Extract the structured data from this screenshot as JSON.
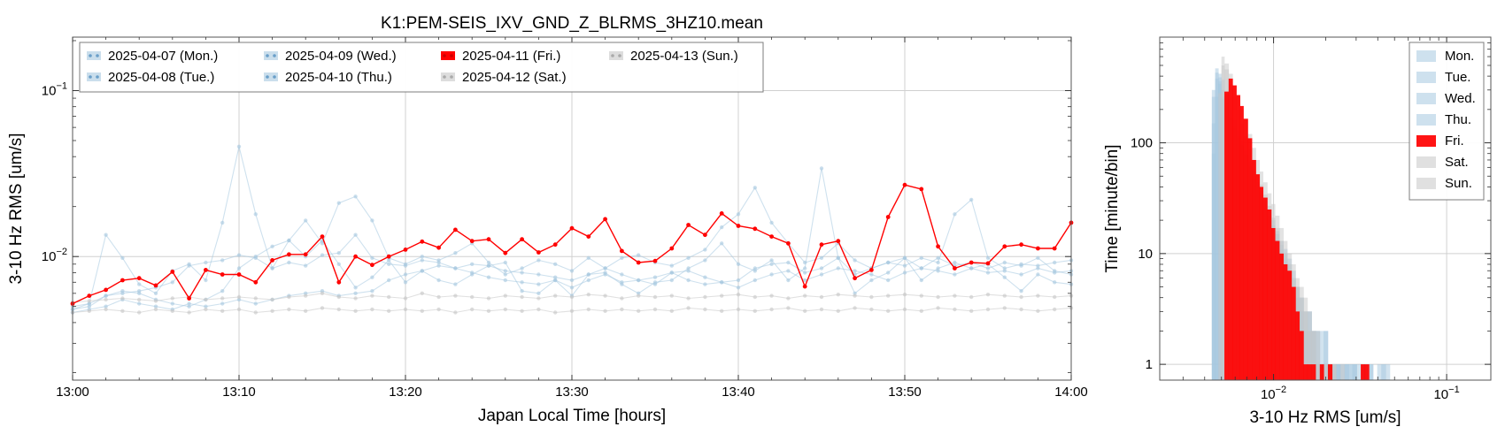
{
  "chart_data": [
    {
      "type": "line",
      "title": "K1:PEM-SEIS_IXV_GND_Z_BLRMS_3HZ10.mean",
      "xlabel": "Japan Local Time [hours]",
      "ylabel": "3-10 Hz RMS [um/s]",
      "xlim": [
        0,
        60
      ],
      "ylim": [
        0.0018,
        0.21
      ],
      "yscale": "log",
      "grid": true,
      "legend_placement": "top-left",
      "x_ticks": [
        {
          "value": 0,
          "label": "13:00"
        },
        {
          "value": 10,
          "label": "13:10"
        },
        {
          "value": 20,
          "label": "13:20"
        },
        {
          "value": 30,
          "label": "13:30"
        },
        {
          "value": 40,
          "label": "13:40"
        },
        {
          "value": 50,
          "label": "13:50"
        },
        {
          "value": 60,
          "label": "14:00"
        }
      ],
      "y_ticks": [
        {
          "value": 0.01,
          "base": "10",
          "exp": "−2"
        },
        {
          "value": 0.1,
          "base": "10",
          "exp": "−1"
        }
      ],
      "series": [
        {
          "name": "2025-04-07 (Mon.)",
          "color": "#a6c8e0",
          "highlight": false,
          "values": [
            0.0048,
            0.0052,
            0.0135,
            0.0098,
            0.0068,
            0.006,
            0.0082,
            0.009,
            0.0072,
            0.016,
            0.046,
            0.018,
            0.0085,
            0.0125,
            0.01,
            0.0125,
            0.009,
            0.0065,
            0.0075,
            0.0095,
            0.007,
            0.0082,
            0.0072,
            0.0068,
            0.0078,
            0.0088,
            0.0092,
            0.0062,
            0.006,
            0.0072,
            0.0058,
            0.0078,
            0.008,
            0.0068,
            0.006,
            0.007,
            0.0072,
            0.0085,
            0.0095,
            0.012,
            0.009,
            0.0082,
            0.0095,
            0.0072,
            0.0085,
            0.034,
            0.0098,
            0.006,
            0.0072,
            0.008,
            0.0098,
            0.0072,
            0.0085,
            0.0092,
            0.0085,
            0.009,
            0.0075,
            0.0062,
            0.0078,
            0.007,
            0.0068
          ]
        },
        {
          "name": "2025-04-08 (Tue.)",
          "color": "#a6c8e0",
          "highlight": false,
          "values": [
            0.005,
            0.0052,
            0.0058,
            0.006,
            0.0062,
            0.0065,
            0.007,
            0.0088,
            0.0092,
            0.0095,
            0.0102,
            0.0098,
            0.0085,
            0.0092,
            0.0088,
            0.0102,
            0.0105,
            0.0135,
            0.0098,
            0.009,
            0.0088,
            0.0095,
            0.0092,
            0.0085,
            0.009,
            0.0088,
            0.0082,
            0.008,
            0.0078,
            0.0075,
            0.0072,
            0.0078,
            0.0085,
            0.0098,
            0.0102,
            0.0092,
            0.0088,
            0.0098,
            0.011,
            0.015,
            0.018,
            0.026,
            0.016,
            0.012,
            0.0092,
            0.0098,
            0.012,
            0.0095,
            0.0085,
            0.0092,
            0.0088,
            0.0098,
            0.0092,
            0.018,
            0.022,
            0.0098,
            0.0085,
            0.009,
            0.0088,
            0.0092,
            0.0095
          ]
        },
        {
          "name": "2025-04-09 (Wed.)",
          "color": "#a6c8e0",
          "highlight": false,
          "values": [
            0.0048,
            0.005,
            0.0058,
            0.0062,
            0.006,
            0.0055,
            0.0052,
            0.005,
            0.0055,
            0.0062,
            0.0085,
            0.01,
            0.0115,
            0.0125,
            0.0165,
            0.012,
            0.021,
            0.023,
            0.0165,
            0.0098,
            0.009,
            0.01,
            0.0095,
            0.0105,
            0.012,
            0.0092,
            0.0078,
            0.0085,
            0.0095,
            0.009,
            0.0082,
            0.0098,
            0.0085,
            0.0078,
            0.0072,
            0.0068,
            0.008,
            0.0082,
            0.0075,
            0.007,
            0.0072,
            0.0085,
            0.009,
            0.0092,
            0.008,
            0.0085,
            0.0098,
            0.0078,
            0.0085,
            0.0092,
            0.0098,
            0.0085,
            0.0098,
            0.0088,
            0.0092,
            0.0085,
            0.0092,
            0.0088,
            0.0098,
            0.0082,
            0.0078
          ]
        },
        {
          "name": "2025-04-10 (Thu.)",
          "color": "#a6c8e0",
          "highlight": false,
          "values": [
            0.0046,
            0.0048,
            0.005,
            0.0055,
            0.0052,
            0.005,
            0.0048,
            0.0052,
            0.005,
            0.0052,
            0.0055,
            0.0052,
            0.0055,
            0.0058,
            0.006,
            0.0062,
            0.0058,
            0.006,
            0.0062,
            0.0072,
            0.0078,
            0.0082,
            0.0088,
            0.0085,
            0.008,
            0.0075,
            0.0072,
            0.007,
            0.0068,
            0.0072,
            0.0065,
            0.0072,
            0.0078,
            0.007,
            0.0072,
            0.0075,
            0.008,
            0.0072,
            0.0068,
            0.007,
            0.0065,
            0.0072,
            0.0078,
            0.0082,
            0.0072,
            0.0078,
            0.0085,
            0.0082,
            0.0078,
            0.0072,
            0.008,
            0.0085,
            0.0082,
            0.0078,
            0.0085,
            0.008,
            0.0082,
            0.0078,
            0.0085,
            0.008,
            0.0082
          ]
        },
        {
          "name": "2025-04-11 (Fri.)",
          "color": "#ff0000",
          "highlight": true,
          "values": [
            0.0052,
            0.0058,
            0.0063,
            0.0072,
            0.0074,
            0.0067,
            0.0081,
            0.0056,
            0.0083,
            0.0078,
            0.0078,
            0.007,
            0.0095,
            0.0103,
            0.0103,
            0.0132,
            0.007,
            0.01,
            0.0089,
            0.01,
            0.011,
            0.0123,
            0.0113,
            0.0145,
            0.0124,
            0.0127,
            0.0105,
            0.0127,
            0.0106,
            0.0118,
            0.0148,
            0.0132,
            0.0168,
            0.0108,
            0.0092,
            0.0094,
            0.0112,
            0.0155,
            0.0135,
            0.0182,
            0.0153,
            0.0147,
            0.0132,
            0.012,
            0.0066,
            0.0118,
            0.0124,
            0.0074,
            0.0083,
            0.0173,
            0.027,
            0.0255,
            0.0115,
            0.0085,
            0.0092,
            0.0091,
            0.0115,
            0.0118,
            0.0112,
            0.0112,
            0.016
          ]
        },
        {
          "name": "2025-04-12 (Sat.)",
          "color": "#c7c7c7",
          "highlight": false,
          "values": [
            0.0053,
            0.0054,
            0.0055,
            0.0056,
            0.0055,
            0.0054,
            0.0056,
            0.0057,
            0.0055,
            0.0056,
            0.0057,
            0.0056,
            0.0055,
            0.0057,
            0.0058,
            0.006,
            0.0057,
            0.0056,
            0.0058,
            0.0057,
            0.0056,
            0.006,
            0.0057,
            0.0058,
            0.0057,
            0.0056,
            0.0058,
            0.0057,
            0.0056,
            0.0058,
            0.0057,
            0.0059,
            0.0058,
            0.0056,
            0.0058,
            0.0057,
            0.0058,
            0.0056,
            0.0057,
            0.0058,
            0.0059,
            0.0057,
            0.0058,
            0.0056,
            0.0058,
            0.0057,
            0.0059,
            0.0058,
            0.0057,
            0.0058,
            0.0059,
            0.0058,
            0.0057,
            0.0058,
            0.0057,
            0.0059,
            0.0058,
            0.0057,
            0.0058,
            0.0057,
            0.0058
          ]
        },
        {
          "name": "2025-04-13 (Sun.)",
          "color": "#c7c7c7",
          "highlight": false,
          "values": [
            0.0046,
            0.0047,
            0.0048,
            0.0047,
            0.0046,
            0.0048,
            0.0047,
            0.0046,
            0.0048,
            0.0047,
            0.0048,
            0.0046,
            0.0047,
            0.0048,
            0.0047,
            0.0049,
            0.0048,
            0.0047,
            0.0048,
            0.0047,
            0.0048,
            0.0047,
            0.0048,
            0.0046,
            0.0048,
            0.0047,
            0.0048,
            0.0047,
            0.0048,
            0.0046,
            0.0047,
            0.0048,
            0.0047,
            0.0048,
            0.0047,
            0.0048,
            0.0047,
            0.0049,
            0.0048,
            0.0047,
            0.0048,
            0.0047,
            0.0048,
            0.0049,
            0.0047,
            0.0048,
            0.0047,
            0.0049,
            0.0048,
            0.0047,
            0.0048,
            0.0047,
            0.0049,
            0.0048,
            0.0047,
            0.0048,
            0.0049,
            0.0048,
            0.0047,
            0.0048,
            0.0049
          ]
        }
      ]
    },
    {
      "type": "histogram",
      "title": "",
      "xlabel": "3-10 Hz RMS [um/s]",
      "ylabel": "Time [minute/bin]",
      "xscale": "log",
      "yscale": "log",
      "xlim": [
        0.0022,
        0.18
      ],
      "ylim": [
        0.72,
        900
      ],
      "grid": true,
      "legend_placement": "top-right",
      "x_ticks": [
        {
          "value": 0.01,
          "base": "10",
          "exp": "−2"
        },
        {
          "value": 0.1,
          "base": "10",
          "exp": "−1"
        }
      ],
      "y_ticks": [
        {
          "value": 1,
          "label": "1"
        },
        {
          "value": 10,
          "label": "10"
        },
        {
          "value": 100,
          "label": "100"
        }
      ],
      "legend": [
        {
          "label": "Mon.",
          "color": "#a6c8e0"
        },
        {
          "label": "Tue.",
          "color": "#a6c8e0"
        },
        {
          "label": "Wed.",
          "color": "#a6c8e0"
        },
        {
          "label": "Thu.",
          "color": "#a6c8e0"
        },
        {
          "label": "Fri.",
          "color": "#ff0000"
        },
        {
          "label": "Sat.",
          "color": "#c7c7c7"
        },
        {
          "label": "Sun.",
          "color": "#c7c7c7"
        }
      ],
      "bin_edges": [
        0.0042,
        0.0044,
        0.0046,
        0.0048,
        0.005,
        0.0052,
        0.0055,
        0.0058,
        0.0061,
        0.0064,
        0.0067,
        0.0071,
        0.0075,
        0.0079,
        0.0083,
        0.0087,
        0.0092,
        0.0097,
        0.0102,
        0.0108,
        0.0114,
        0.012,
        0.0127,
        0.0134,
        0.0141,
        0.0149,
        0.0157,
        0.0166,
        0.0175,
        0.0185,
        0.0195,
        0.0206,
        0.0218,
        0.023,
        0.0243,
        0.0257,
        0.0271,
        0.0286,
        0.0302,
        0.0319,
        0.0337,
        0.0356,
        0.0376,
        0.0397,
        0.042,
        0.0444,
        0.047
      ],
      "series": [
        {
          "name": "Mon.",
          "color": "#a6c8e0",
          "values": [
            0,
            300,
            430,
            360,
            250,
            190,
            150,
            120,
            110,
            95,
            80,
            60,
            48,
            36,
            30,
            26,
            22,
            18,
            15,
            11,
            9,
            7,
            5,
            4,
            3,
            2,
            2,
            2,
            1,
            1,
            2,
            1,
            1,
            1,
            0,
            1,
            1,
            0,
            1,
            0,
            0,
            1,
            0,
            0,
            1,
            0
          ]
        },
        {
          "name": "Tue.",
          "color": "#a6c8e0",
          "values": [
            0,
            150,
            380,
            420,
            300,
            220,
            170,
            140,
            115,
            95,
            78,
            62,
            50,
            40,
            34,
            28,
            22,
            18,
            15,
            12,
            10,
            8,
            6,
            5,
            4,
            3,
            3,
            2,
            2,
            1,
            2,
            1,
            1,
            1,
            1,
            0,
            1,
            1,
            0,
            1,
            1,
            0,
            0,
            1,
            0,
            1
          ]
        },
        {
          "name": "Wed.",
          "color": "#a6c8e0",
          "values": [
            0,
            80,
            260,
            390,
            370,
            280,
            200,
            160,
            130,
            105,
            85,
            68,
            55,
            44,
            37,
            30,
            24,
            20,
            16,
            13,
            11,
            9,
            7,
            5,
            4,
            3,
            3,
            2,
            2,
            2,
            1,
            1,
            1,
            1,
            1,
            1,
            0,
            1,
            0,
            1,
            0,
            1,
            0,
            0,
            1,
            0
          ]
        },
        {
          "name": "Thu.",
          "color": "#a6c8e0",
          "values": [
            0,
            260,
            470,
            340,
            260,
            210,
            170,
            135,
            108,
            88,
            72,
            58,
            46,
            37,
            31,
            25,
            20,
            16,
            13,
            10,
            8,
            6,
            5,
            4,
            3,
            2,
            2,
            2,
            1,
            1,
            1,
            1,
            0,
            1,
            0,
            1,
            0,
            1,
            0,
            0,
            1,
            0,
            0,
            0,
            0,
            0
          ]
        },
        {
          "name": "Sat.",
          "color": "#c7c7c7",
          "values": [
            0,
            0,
            0,
            0,
            500,
            520,
            420,
            330,
            260,
            200,
            160,
            120,
            90,
            70,
            55,
            44,
            35,
            28,
            22,
            17,
            13,
            10,
            8,
            6,
            5,
            4,
            3,
            2,
            2,
            1,
            1,
            1,
            1,
            0,
            1,
            0,
            0,
            0,
            0,
            0,
            0,
            0,
            0,
            0,
            0,
            0
          ]
        },
        {
          "name": "Sun.",
          "color": "#c7c7c7",
          "values": [
            0,
            0,
            0,
            280,
            600,
            460,
            340,
            260,
            200,
            150,
            115,
            88,
            68,
            52,
            42,
            34,
            27,
            21,
            17,
            13,
            10,
            8,
            6,
            5,
            4,
            3,
            2,
            2,
            1,
            1,
            1,
            0,
            1,
            0,
            0,
            0,
            0,
            0,
            0,
            0,
            0,
            0,
            0,
            0,
            0,
            0
          ]
        },
        {
          "name": "Fri.",
          "color": "#ff0000",
          "values": [
            0,
            0,
            0,
            0,
            0,
            290,
            380,
            330,
            270,
            215,
            165,
            110,
            70,
            52,
            40,
            32,
            25,
            17,
            13,
            10,
            8,
            7,
            5,
            3,
            2,
            1,
            1,
            1,
            0,
            1,
            0,
            1,
            0,
            0,
            0,
            0,
            0,
            0,
            0,
            1,
            1,
            0,
            0,
            0,
            0,
            0
          ]
        }
      ]
    }
  ]
}
